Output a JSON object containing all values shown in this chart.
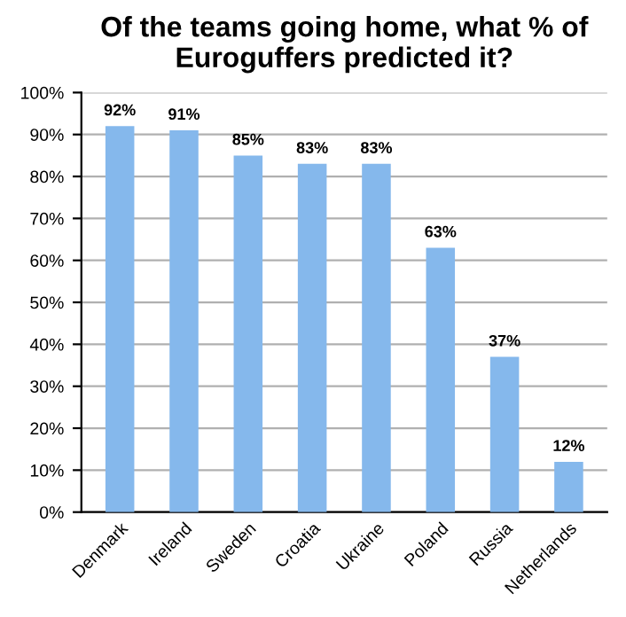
{
  "chart_data": {
    "type": "bar",
    "title": "Of the teams going home, what % of Euroguffers predicted it?",
    "categories": [
      "Denmark",
      "Ireland",
      "Sweden",
      "Croatia",
      "Ukraine",
      "Poland",
      "Russia",
      "Netherlands"
    ],
    "values": [
      92,
      91,
      85,
      83,
      83,
      63,
      37,
      12
    ],
    "value_labels": [
      "92%",
      "91%",
      "85%",
      "83%",
      "83%",
      "63%",
      "37%",
      "12%"
    ],
    "color": "#85b8ec",
    "ylim": [
      0,
      100
    ],
    "yticks": [
      {
        "value": 0,
        "label": "0%"
      },
      {
        "value": 10,
        "label": "10%"
      },
      {
        "value": 20,
        "label": "20%"
      },
      {
        "value": 30,
        "label": "30%"
      },
      {
        "value": 40,
        "label": "40%"
      },
      {
        "value": 50,
        "label": "50%"
      },
      {
        "value": 60,
        "label": "60%"
      },
      {
        "value": 70,
        "label": "70%"
      },
      {
        "value": 80,
        "label": "80%"
      },
      {
        "value": 90,
        "label": "90%"
      },
      {
        "value": 100,
        "label": "100%"
      }
    ],
    "grid": "y",
    "legend": false
  }
}
